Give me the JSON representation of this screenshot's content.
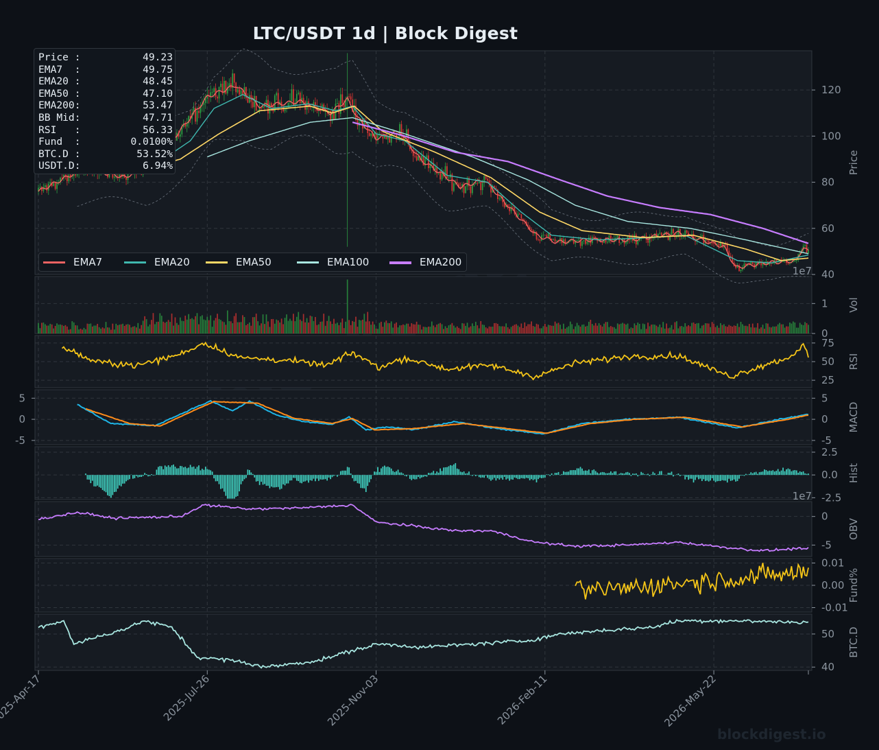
{
  "title": "LTC/USDT  1d  |  Block Digest",
  "watermark": "blockdigest.io",
  "info_box": [
    {
      "key": "Price :",
      "value": "49.23"
    },
    {
      "key": "EMA7  :",
      "value": "49.75"
    },
    {
      "key": "EMA20 :",
      "value": "48.45"
    },
    {
      "key": "EMA50 :",
      "value": "47.10"
    },
    {
      "key": "EMA200:",
      "value": "53.47"
    },
    {
      "key": "BB Mid:",
      "value": "47.71"
    },
    {
      "key": "RSI   :",
      "value": "56.33"
    },
    {
      "key": "Fund  :",
      "value": "0.0100%"
    },
    {
      "key": "BTC.D :",
      "value": "53.52%"
    },
    {
      "key": "USDT.D:",
      "value": "6.94%"
    }
  ],
  "legend": [
    {
      "name": "EMA7",
      "color": "#ef6262"
    },
    {
      "name": "EMA20",
      "color": "#3fb8af"
    },
    {
      "name": "EMA50",
      "color": "#ffd866"
    },
    {
      "name": "EMA100",
      "color": "#a8e6e0"
    },
    {
      "name": "EMA200",
      "color": "#c77dff"
    }
  ],
  "colors": {
    "background": "#0d1117",
    "panel": "#161b22",
    "grid": "#30363d",
    "up": "#2ea043",
    "down": "#da3633",
    "rsi": "#f5c518",
    "macd": "#1fb5e6",
    "signal": "#ff8c1a",
    "hist": "#40d0c0",
    "obv": "#c77dff",
    "funding": "#f5c518",
    "btcd": "#a8e6e0"
  },
  "chart_data": [
    {
      "panel": "price",
      "type": "candlestick",
      "ylabel": "Price",
      "ylim": [
        40,
        137
      ],
      "yticks": [
        "40",
        "60",
        "80",
        "100",
        "120"
      ],
      "x_ticks": [
        "2025-Apr-17",
        "2025-Jul-26",
        "2025-Nov-03",
        "2026-Feb-11",
        "2026-May-22"
      ],
      "x_range": [
        "2025-Apr-17",
        "2026-Jul-17"
      ],
      "ema_keypoints": {
        "EMA7": [
          [
            "2025-Apr-17",
            76
          ],
          [
            "2025-May-14",
            86
          ],
          [
            "2025-Jun-08",
            82
          ],
          [
            "2025-Jul-05",
            98
          ],
          [
            "2025-Jul-26",
            117
          ],
          [
            "2025-Aug-12",
            122
          ],
          [
            "2025-Aug-26",
            113
          ],
          [
            "2025-Sep-19",
            115
          ],
          [
            "2025-Oct-07",
            110
          ],
          [
            "2025-Oct-17",
            116
          ],
          [
            "2025-Oct-23",
            108
          ],
          [
            "2025-Nov-03",
            99
          ],
          [
            "2025-Nov-17",
            102
          ],
          [
            "2025-Nov-29",
            90
          ],
          [
            "2025-Dec-23",
            78
          ],
          [
            "2026-Jan-06",
            81
          ],
          [
            "2026-Jan-25",
            66
          ],
          [
            "2026-Feb-06",
            57
          ],
          [
            "2026-Feb-18",
            54
          ],
          [
            "2026-Mar-08",
            55
          ],
          [
            "2026-Apr-03",
            55
          ],
          [
            "2026-May-01",
            58
          ],
          [
            "2026-May-28",
            52
          ],
          [
            "2026-Jun-04",
            43
          ],
          [
            "2026-Jun-22",
            45
          ],
          [
            "2026-Jul-10",
            46
          ],
          [
            "2026-Jul-14",
            52
          ],
          [
            "2026-Jul-17",
            49.75
          ]
        ],
        "EMA20": [
          [
            "2025-May-20",
            84
          ],
          [
            "2025-Jun-20",
            85
          ],
          [
            "2025-Jul-16",
            98
          ],
          [
            "2025-Jul-30",
            112
          ],
          [
            "2025-Aug-16",
            118
          ],
          [
            "2025-Sep-02",
            112
          ],
          [
            "2025-Sep-24",
            114
          ],
          [
            "2025-Oct-10",
            111
          ],
          [
            "2025-Oct-20",
            113
          ],
          [
            "2025-Nov-03",
            101
          ],
          [
            "2025-Nov-20",
            98
          ],
          [
            "2025-Dec-15",
            83
          ],
          [
            "2026-Jan-08",
            80
          ],
          [
            "2026-Jan-28",
            67
          ],
          [
            "2026-Feb-15",
            57
          ],
          [
            "2026-Mar-15",
            55
          ],
          [
            "2026-Apr-15",
            56
          ],
          [
            "2026-May-05",
            57
          ],
          [
            "2026-Jun-05",
            46
          ],
          [
            "2026-Jun-25",
            45
          ],
          [
            "2026-Jul-17",
            48.45
          ]
        ],
        "EMA50": [
          [
            "2025-Jun-10",
            84
          ],
          [
            "2025-Jul-10",
            90
          ],
          [
            "2025-Aug-02",
            101
          ],
          [
            "2025-Aug-26",
            111
          ],
          [
            "2025-Sep-25",
            113
          ],
          [
            "2025-Oct-08",
            110
          ],
          [
            "2025-Oct-21",
            113
          ],
          [
            "2025-Nov-07",
            102
          ],
          [
            "2025-Dec-08",
            93
          ],
          [
            "2026-Jan-10",
            82
          ],
          [
            "2026-Feb-08",
            67
          ],
          [
            "2026-Mar-05",
            59
          ],
          [
            "2026-Apr-10",
            56
          ],
          [
            "2026-May-10",
            57
          ],
          [
            "2026-Jun-10",
            51
          ],
          [
            "2026-Jul-01",
            46
          ],
          [
            "2026-Jul-17",
            47.1
          ]
        ],
        "EMA100": [
          [
            "2025-Jul-26",
            91
          ],
          [
            "2025-Aug-20",
            98
          ],
          [
            "2025-Sep-25",
            106
          ],
          [
            "2025-Oct-20",
            108
          ],
          [
            "2025-Nov-20",
            101
          ],
          [
            "2025-Dec-30",
            91
          ],
          [
            "2026-Feb-01",
            81
          ],
          [
            "2026-Mar-01",
            70
          ],
          [
            "2026-Apr-01",
            63
          ],
          [
            "2026-May-08",
            60
          ],
          [
            "2026-Jun-10",
            55
          ],
          [
            "2026-Jul-17",
            49
          ]
        ],
        "EMA200": [
          [
            "2025-Oct-20",
            106
          ],
          [
            "2025-Nov-20",
            100
          ],
          [
            "2025-Dec-20",
            93
          ],
          [
            "2026-Jan-20",
            89
          ],
          [
            "2026-Feb-20",
            81
          ],
          [
            "2026-Mar-20",
            74
          ],
          [
            "2026-Apr-20",
            69
          ],
          [
            "2026-May-20",
            66
          ],
          [
            "2026-Jun-20",
            60
          ],
          [
            "2026-Jul-17",
            53.47
          ]
        ]
      }
    },
    {
      "panel": "volume",
      "type": "bar",
      "ylabel": "Vol",
      "scale_label": "1e7",
      "ylim": [
        0,
        1.9
      ],
      "yticks": [
        "0",
        "1"
      ]
    },
    {
      "panel": "rsi",
      "type": "line",
      "ylabel": "RSI",
      "ylim": [
        15,
        85
      ],
      "yticks": [
        "25",
        "50",
        "75"
      ],
      "keypoints": [
        [
          "2025-May-01",
          70
        ],
        [
          "2025-May-20",
          50
        ],
        [
          "2025-Jun-15",
          45
        ],
        [
          "2025-Jul-10",
          60
        ],
        [
          "2025-Jul-24",
          75
        ],
        [
          "2025-Aug-15",
          55
        ],
        [
          "2025-Sep-10",
          52
        ],
        [
          "2025-Oct-05",
          45
        ],
        [
          "2025-Oct-20",
          62
        ],
        [
          "2025-Nov-05",
          42
        ],
        [
          "2025-Nov-20",
          55
        ],
        [
          "2025-Dec-15",
          40
        ],
        [
          "2026-Jan-10",
          45
        ],
        [
          "2026-Feb-05",
          30
        ],
        [
          "2026-Mar-01",
          48
        ],
        [
          "2026-Apr-01",
          57
        ],
        [
          "2026-May-01",
          58
        ],
        [
          "2026-Jun-01",
          30
        ],
        [
          "2026-Jun-20",
          45
        ],
        [
          "2026-Jul-05",
          55
        ],
        [
          "2026-Jul-14",
          72
        ],
        [
          "2026-Jul-17",
          56.33
        ]
      ]
    },
    {
      "panel": "macd",
      "type": "line",
      "ylabel": "MACD",
      "ylim": [
        -6,
        7
      ],
      "yticks": [
        "-5",
        "0",
        "5"
      ],
      "series": [
        {
          "name": "MACD",
          "keypoints": [
            [
              "2025-May-10",
              3.5
            ],
            [
              "2025-May-30",
              -1
            ],
            [
              "2025-Jun-25",
              -1.5
            ],
            [
              "2025-Jul-20",
              3
            ],
            [
              "2025-Jul-28",
              4.3
            ],
            [
              "2025-Aug-10",
              2
            ],
            [
              "2025-Aug-20",
              4.3
            ],
            [
              "2025-Sep-05",
              1
            ],
            [
              "2025-Sep-20",
              -0.5
            ],
            [
              "2025-Oct-08",
              -1.2
            ],
            [
              "2025-Oct-18",
              0.5
            ],
            [
              "2025-Oct-28",
              -2.5
            ],
            [
              "2025-Nov-10",
              -1.8
            ],
            [
              "2025-Nov-25",
              -2.5
            ],
            [
              "2025-Dec-20",
              -0.5
            ],
            [
              "2026-Jan-10",
              -2
            ],
            [
              "2026-Feb-10",
              -3.5
            ],
            [
              "2026-Mar-05",
              -1
            ],
            [
              "2026-Apr-01",
              0
            ],
            [
              "2026-May-01",
              0.5
            ],
            [
              "2026-Jun-05",
              -2
            ],
            [
              "2026-Jun-30",
              0
            ],
            [
              "2026-Jul-17",
              1.2
            ]
          ]
        },
        {
          "name": "Signal",
          "keypoints": [
            [
              "2025-May-15",
              2.5
            ],
            [
              "2025-Jun-10",
              -1
            ],
            [
              "2025-Jun-28",
              -1.6
            ],
            [
              "2025-Jul-22",
              2.8
            ],
            [
              "2025-Jul-30",
              4.2
            ],
            [
              "2025-Aug-25",
              3.8
            ],
            [
              "2025-Sep-15",
              0.3
            ],
            [
              "2025-Oct-08",
              -1
            ],
            [
              "2025-Oct-20",
              0.2
            ],
            [
              "2025-Nov-02",
              -2.5
            ],
            [
              "2025-Nov-25",
              -2.2
            ],
            [
              "2025-Dec-25",
              -1
            ],
            [
              "2026-Feb-12",
              -3.3
            ],
            [
              "2026-Mar-10",
              -1
            ],
            [
              "2026-Apr-05",
              0
            ],
            [
              "2026-May-05",
              0.5
            ],
            [
              "2026-Jun-08",
              -1.8
            ],
            [
              "2026-Jul-05",
              0
            ],
            [
              "2026-Jul-17",
              1
            ]
          ]
        }
      ]
    },
    {
      "panel": "histogram",
      "type": "bar",
      "ylabel": "Hist",
      "ylim": [
        -2.7,
        3.1
      ],
      "yticks": [
        "-2.5",
        "0.0",
        "2.5"
      ]
    },
    {
      "panel": "obv",
      "type": "line",
      "ylabel": "OBV",
      "scale_label": "1e7",
      "ylim": [
        -7,
        2.6
      ],
      "yticks": [
        "-5",
        "0"
      ],
      "keypoints": [
        [
          "2025-Apr-17",
          -0.5
        ],
        [
          "2025-May-10",
          0.7
        ],
        [
          "2025-Jun-01",
          -0.3
        ],
        [
          "2025-Jul-10",
          0
        ],
        [
          "2025-Jul-24",
          2
        ],
        [
          "2025-Aug-20",
          1.3
        ],
        [
          "2025-Sep-20",
          1.5
        ],
        [
          "2025-Oct-20",
          2
        ],
        [
          "2025-Nov-03",
          -1
        ],
        [
          "2025-Nov-20",
          -1.5
        ],
        [
          "2025-Dec-20",
          -2.5
        ],
        [
          "2026-Jan-10",
          -2.5
        ],
        [
          "2026-Feb-05",
          -4.5
        ],
        [
          "2026-Mar-01",
          -5.2
        ],
        [
          "2026-Apr-01",
          -5
        ],
        [
          "2026-May-01",
          -4.5
        ],
        [
          "2026-Jun-01",
          -5.5
        ],
        [
          "2026-Jun-20",
          -6
        ],
        [
          "2026-Jul-17",
          -5.5
        ]
      ]
    },
    {
      "panel": "funding",
      "type": "line",
      "ylabel": "Fund%",
      "ylim": [
        -0.012,
        0.012
      ],
      "yticks": [
        "-0.01",
        "0.00",
        "0.01"
      ],
      "x_start": "2026-Mar-01"
    },
    {
      "panel": "btcd",
      "type": "line",
      "ylabel": "BTC.D",
      "ylim": [
        39,
        56
      ],
      "yticks": [
        "40",
        "50"
      ],
      "keypoints": [
        [
          "2025-Apr-17",
          52
        ],
        [
          "2025-May-02",
          54
        ],
        [
          "2025-May-08",
          47
        ],
        [
          "2025-Jun-10",
          52
        ],
        [
          "2025-Jun-18",
          54
        ],
        [
          "2025-Jul-05",
          52
        ],
        [
          "2025-Jul-20",
          43
        ],
        [
          "2025-Aug-10",
          42
        ],
        [
          "2025-Aug-30",
          40
        ],
        [
          "2025-Sep-30",
          42
        ],
        [
          "2025-Oct-20",
          45
        ],
        [
          "2025-Nov-05",
          47
        ],
        [
          "2025-Dec-01",
          46
        ],
        [
          "2026-Jan-01",
          47
        ],
        [
          "2026-Feb-01",
          48
        ],
        [
          "2026-Feb-20",
          50
        ],
        [
          "2026-Mar-15",
          51
        ],
        [
          "2026-Apr-15",
          52
        ],
        [
          "2026-May-01",
          54
        ],
        [
          "2026-Jun-01",
          54
        ],
        [
          "2026-Jul-17",
          53.52
        ]
      ]
    }
  ]
}
